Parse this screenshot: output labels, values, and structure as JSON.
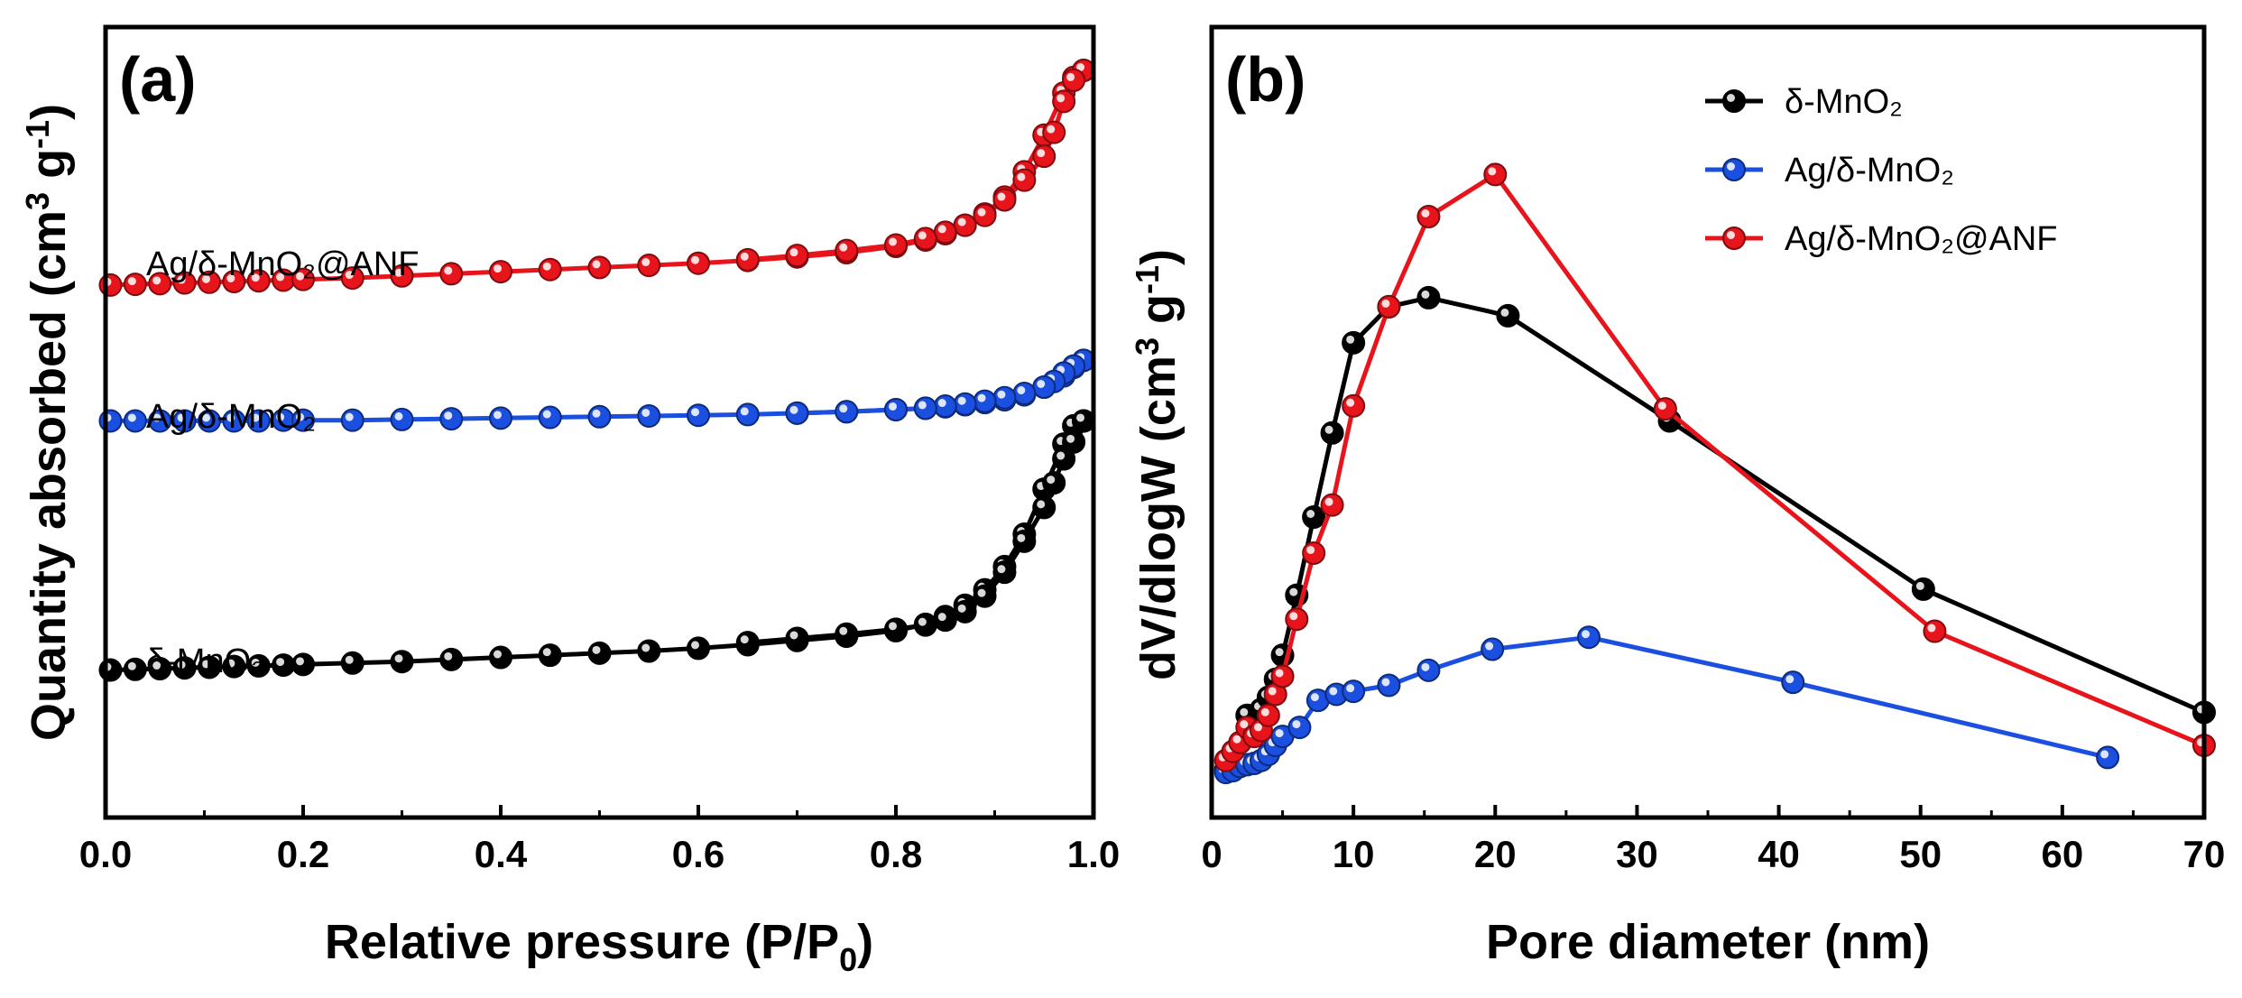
{
  "chart_data": [
    {
      "panel": "(a)",
      "type": "line",
      "xlabel": "Relative pressure (P/P0)",
      "xlabel_main": "Relative pressure (P/P",
      "xlabel_sub": "0",
      "xlabel_end": ")",
      "ylabel": "Quantity absorbed (cm3 g-1)",
      "ylabel_main": "Quantity absorbed (cm",
      "ylabel_sup1": "3",
      "ylabel_mid": " g",
      "ylabel_sup2": "-1",
      "ylabel_end": ")",
      "xlim": [
        0.0,
        1.0
      ],
      "ylim": [
        0,
        100
      ],
      "xticks": [
        "0.0",
        "0.2",
        "0.4",
        "0.6",
        "0.8",
        "1.0"
      ],
      "yticks_shown": false,
      "series": [
        {
          "name": "Ag/δ-MnO₂@ANF",
          "color": "#e8141b",
          "adsorption": {
            "x": [
              0.005,
              0.03,
              0.055,
              0.08,
              0.105,
              0.13,
              0.155,
              0.18,
              0.2,
              0.25,
              0.3,
              0.35,
              0.4,
              0.45,
              0.5,
              0.55,
              0.6,
              0.65,
              0.7,
              0.75,
              0.8,
              0.83,
              0.85,
              0.87,
              0.89,
              0.91,
              0.93,
              0.95,
              0.97,
              0.98,
              0.99
            ],
            "y": [
              69.5,
              69.6,
              69.7,
              69.8,
              69.9,
              70.0,
              70.1,
              70.2,
              70.3,
              70.5,
              70.8,
              71.1,
              71.4,
              71.7,
              72.0,
              72.3,
              72.6,
              73.0,
              73.5,
              74.1,
              75.0,
              75.9,
              76.8,
              78.0,
              79.6,
              82.0,
              85.6,
              90.8,
              96.8,
              99.0,
              100.0
            ]
          },
          "desorption": {
            "x": [
              0.99,
              0.98,
              0.97,
              0.96,
              0.95,
              0.93,
              0.91,
              0.89,
              0.87,
              0.85,
              0.83,
              0.8,
              0.75,
              0.7,
              0.65
            ],
            "y": [
              100.0,
              98.6,
              95.6,
              91.2,
              87.8,
              84.4,
              81.6,
              79.4,
              78.0,
              77.0,
              76.1,
              75.2,
              74.4,
              73.7,
              73.1
            ]
          }
        },
        {
          "name": "Ag/δ-MnO₂",
          "color": "#1a4fe0",
          "adsorption": {
            "x": [
              0.005,
              0.03,
              0.055,
              0.08,
              0.105,
              0.13,
              0.155,
              0.18,
              0.2,
              0.25,
              0.3,
              0.35,
              0.4,
              0.45,
              0.5,
              0.55,
              0.6,
              0.65,
              0.7,
              0.75,
              0.8,
              0.83,
              0.85,
              0.87,
              0.89,
              0.91,
              0.93,
              0.95,
              0.97,
              0.98,
              0.99
            ],
            "y": [
              50.2,
              50.2,
              50.2,
              50.2,
              50.2,
              50.2,
              50.2,
              50.3,
              50.3,
              50.3,
              50.4,
              50.5,
              50.6,
              50.7,
              50.8,
              50.9,
              51.0,
              51.1,
              51.3,
              51.5,
              51.8,
              52.0,
              52.2,
              52.5,
              52.8,
              53.2,
              53.9,
              55.0,
              56.6,
              57.8,
              58.8
            ]
          },
          "desorption": {
            "x": [
              0.99,
              0.98,
              0.97,
              0.96,
              0.95,
              0.93,
              0.91,
              0.89,
              0.87,
              0.85,
              0.83,
              0.8,
              0.75,
              0.7
            ],
            "y": [
              58.8,
              58.0,
              57.0,
              55.8,
              55.0,
              54.1,
              53.5,
              53.0,
              52.6,
              52.3,
              52.0,
              51.8,
              51.5,
              51.3
            ]
          }
        },
        {
          "name": "δ-MnO₂",
          "color": "#000000",
          "adsorption": {
            "x": [
              0.005,
              0.03,
              0.055,
              0.08,
              0.105,
              0.13,
              0.155,
              0.18,
              0.2,
              0.25,
              0.3,
              0.35,
              0.4,
              0.45,
              0.5,
              0.55,
              0.6,
              0.65,
              0.7,
              0.75,
              0.8,
              0.83,
              0.85,
              0.87,
              0.89,
              0.91,
              0.93,
              0.95,
              0.97,
              0.98,
              0.99
            ],
            "y": [
              14.8,
              14.9,
              15.0,
              15.1,
              15.2,
              15.3,
              15.4,
              15.5,
              15.6,
              15.8,
              16.0,
              16.3,
              16.6,
              16.9,
              17.2,
              17.5,
              17.9,
              18.4,
              19.0,
              19.6,
              20.4,
              21.3,
              22.4,
              24.0,
              26.2,
              29.5,
              34.1,
              40.5,
              46.9,
              49.5,
              50.2
            ]
          },
          "desorption": {
            "x": [
              0.99,
              0.98,
              0.97,
              0.96,
              0.95,
              0.93,
              0.91,
              0.89,
              0.87,
              0.85,
              0.83,
              0.8,
              0.75,
              0.7,
              0.65
            ],
            "y": [
              50.2,
              47.2,
              44.8,
              41.4,
              37.9,
              33.1,
              28.7,
              25.3,
              23.1,
              21.9,
              21.2,
              20.6,
              19.9,
              19.3,
              18.7
            ]
          }
        }
      ],
      "series_labels": [
        "Ag/δ-MnO₂@ANF",
        "Ag/δ-MnO₂",
        "δ-MnO₂"
      ]
    },
    {
      "panel": "(b)",
      "type": "line",
      "xlabel": "Pore diameter (nm)",
      "ylabel": "dV/dlogW (cm3 g-1)",
      "ylabel_main": "dV/dlogW (cm",
      "ylabel_sup1": "3",
      "ylabel_mid": " g",
      "ylabel_sup2": "-1",
      "ylabel_end": ")",
      "xlim": [
        0,
        70
      ],
      "ylim": [
        0,
        100
      ],
      "xticks": [
        "0",
        "10",
        "20",
        "30",
        "40",
        "50",
        "60",
        "70"
      ],
      "yticks_shown": false,
      "legend_position": "top-right",
      "series": [
        {
          "name": "δ-MnO₂",
          "color": "#000000",
          "x": [
            1.0,
            1.5,
            2.0,
            2.5,
            3.0,
            3.5,
            4.0,
            4.5,
            5.0,
            6.0,
            7.2,
            8.5,
            10.0,
            12.5,
            15.3,
            20.9,
            32.3,
            50.2,
            70.0
          ],
          "y": [
            8.0,
            10.0,
            12.5,
            17.0,
            15.5,
            18.0,
            20.0,
            23.0,
            27.0,
            37.0,
            50.0,
            64.0,
            79.0,
            85.0,
            86.5,
            83.5,
            66.0,
            38.0,
            17.5
          ]
        },
        {
          "name": "Ag/δ-MnO₂",
          "color": "#1a4fe0",
          "x": [
            1.0,
            1.5,
            2.0,
            2.5,
            3.0,
            3.5,
            4.0,
            4.5,
            5.0,
            6.2,
            7.5,
            8.8,
            10.0,
            12.5,
            15.3,
            19.8,
            26.6,
            41.0,
            63.2
          ],
          "y": [
            7.5,
            7.8,
            8.5,
            8.8,
            9.0,
            9.5,
            10.5,
            12.0,
            13.5,
            15.0,
            19.5,
            20.5,
            21.0,
            22.0,
            24.5,
            28.0,
            30.0,
            22.5,
            10.0
          ]
        },
        {
          "name": "Ag/δ-MnO₂@ANF",
          "color": "#e8141b",
          "x": [
            1.0,
            1.5,
            2.0,
            2.5,
            3.0,
            3.5,
            4.0,
            4.5,
            5.0,
            6.0,
            7.2,
            8.5,
            10.0,
            12.5,
            15.3,
            20.0,
            32.0,
            51.0,
            70.0
          ],
          "y": [
            9.5,
            11.0,
            12.5,
            15.0,
            13.5,
            14.5,
            17.0,
            20.5,
            23.5,
            33.0,
            44.0,
            52.0,
            68.5,
            85.0,
            100.0,
            107.0,
            68.0,
            31.0,
            12.0
          ]
        }
      ],
      "legend": [
        "δ-MnO₂",
        "Ag/δ-MnO₂",
        "Ag/δ-MnO₂@ANF"
      ]
    }
  ]
}
